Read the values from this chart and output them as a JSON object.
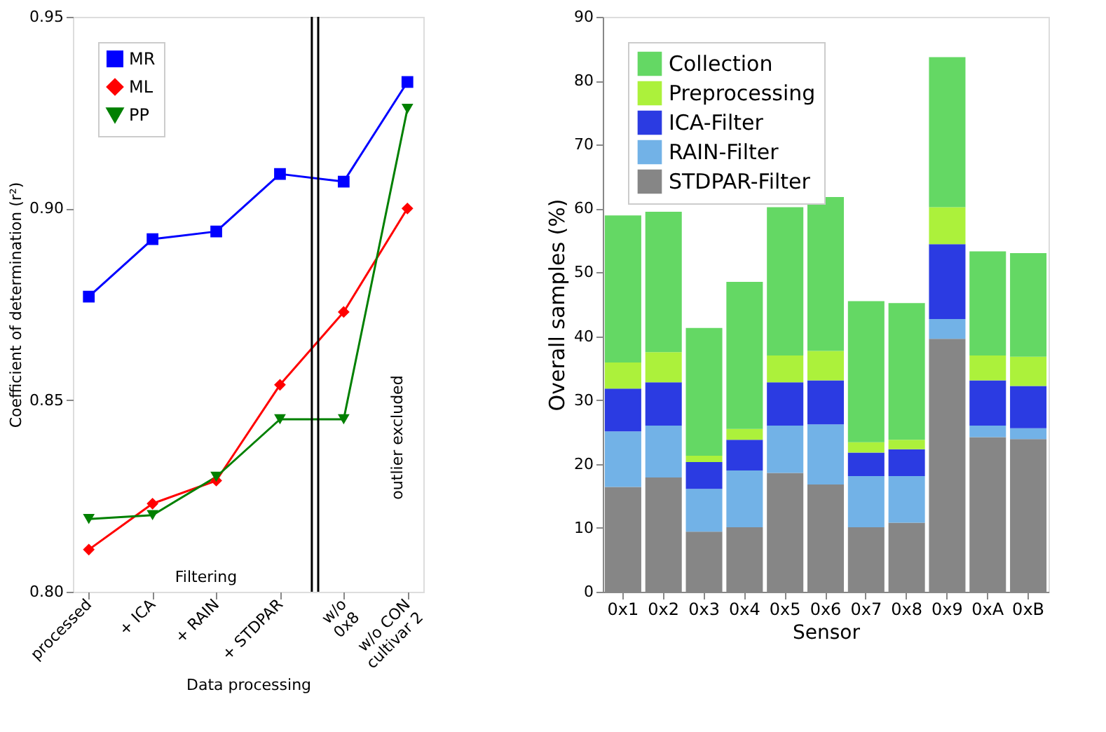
{
  "chart_data": [
    {
      "type": "line",
      "xlabel": "Data processing",
      "ylabel": "Coefficient of determination (r²)",
      "categories": [
        "processed",
        "+ ICA",
        "+ RAIN",
        "+ STDPAR",
        "w/o\n0x8",
        "w/o CON\ncultivar 2"
      ],
      "ylim": [
        0.8,
        0.95
      ],
      "yticks": [
        {
          "value": 0.8,
          "label": "0.80"
        },
        0.85,
        {
          "value": 0.9,
          "label": "0.90"
        },
        0.95
      ],
      "series": [
        {
          "name": "MR",
          "color": "#0000ff",
          "marker": "square",
          "values": [
            0.877,
            0.892,
            0.894,
            0.909,
            0.907,
            0.933
          ]
        },
        {
          "name": "ML",
          "color": "#ff0000",
          "marker": "diamond",
          "values": [
            0.811,
            0.823,
            0.829,
            0.854,
            0.873,
            0.9
          ]
        },
        {
          "name": "PP",
          "color": "#008000",
          "marker": "triangle",
          "values": [
            0.819,
            0.82,
            0.83,
            0.845,
            0.845,
            0.926
          ]
        }
      ],
      "annotations": [
        "Filtering",
        "outlier excluded"
      ],
      "legend": "top left",
      "grid": false,
      "line_style": "solid"
    },
    {
      "type": "bar",
      "stacked": true,
      "xlabel": "Sensor",
      "ylabel": "Overall samples (%)",
      "categories": [
        "0x1",
        "0x2",
        "0x3",
        "0x4",
        "0x5",
        "0x6",
        "0x7",
        "0x8",
        "0x9",
        "0xA",
        "0xB"
      ],
      "ylim": [
        0,
        90
      ],
      "yticks": [
        0,
        10,
        20,
        30,
        40,
        50,
        60,
        70,
        80,
        90
      ],
      "series": [
        {
          "name": "STDPAR-Filter",
          "color": "#7f7f7f",
          "values": [
            16.4,
            17.9,
            9.4,
            10.1,
            18.6,
            16.8,
            10.1,
            10.8,
            39.6,
            24.2,
            23.9
          ]
        },
        {
          "name": "RAIN-Filter",
          "color": "#6aaee6",
          "values": [
            8.7,
            8.1,
            6.7,
            8.9,
            7.4,
            9.4,
            8.0,
            7.3,
            3.1,
            1.8,
            1.7
          ]
        },
        {
          "name": "ICA-Filter",
          "color": "#2030e0",
          "values": [
            6.7,
            6.8,
            4.2,
            4.8,
            6.8,
            6.9,
            3.7,
            4.2,
            11.7,
            7.1,
            6.6
          ]
        },
        {
          "name": "Preprocessing",
          "color": "#a8f030",
          "values": [
            4.1,
            4.7,
            1.0,
            1.7,
            4.2,
            4.6,
            1.6,
            1.5,
            5.8,
            3.9,
            4.6
          ]
        },
        {
          "name": "Collection",
          "color": "#5cd65c",
          "values": [
            23.0,
            22.0,
            20.0,
            23.0,
            23.2,
            24.1,
            22.1,
            21.4,
            23.5,
            16.3,
            16.2
          ]
        }
      ],
      "legend": "top left",
      "grid": false
    }
  ]
}
